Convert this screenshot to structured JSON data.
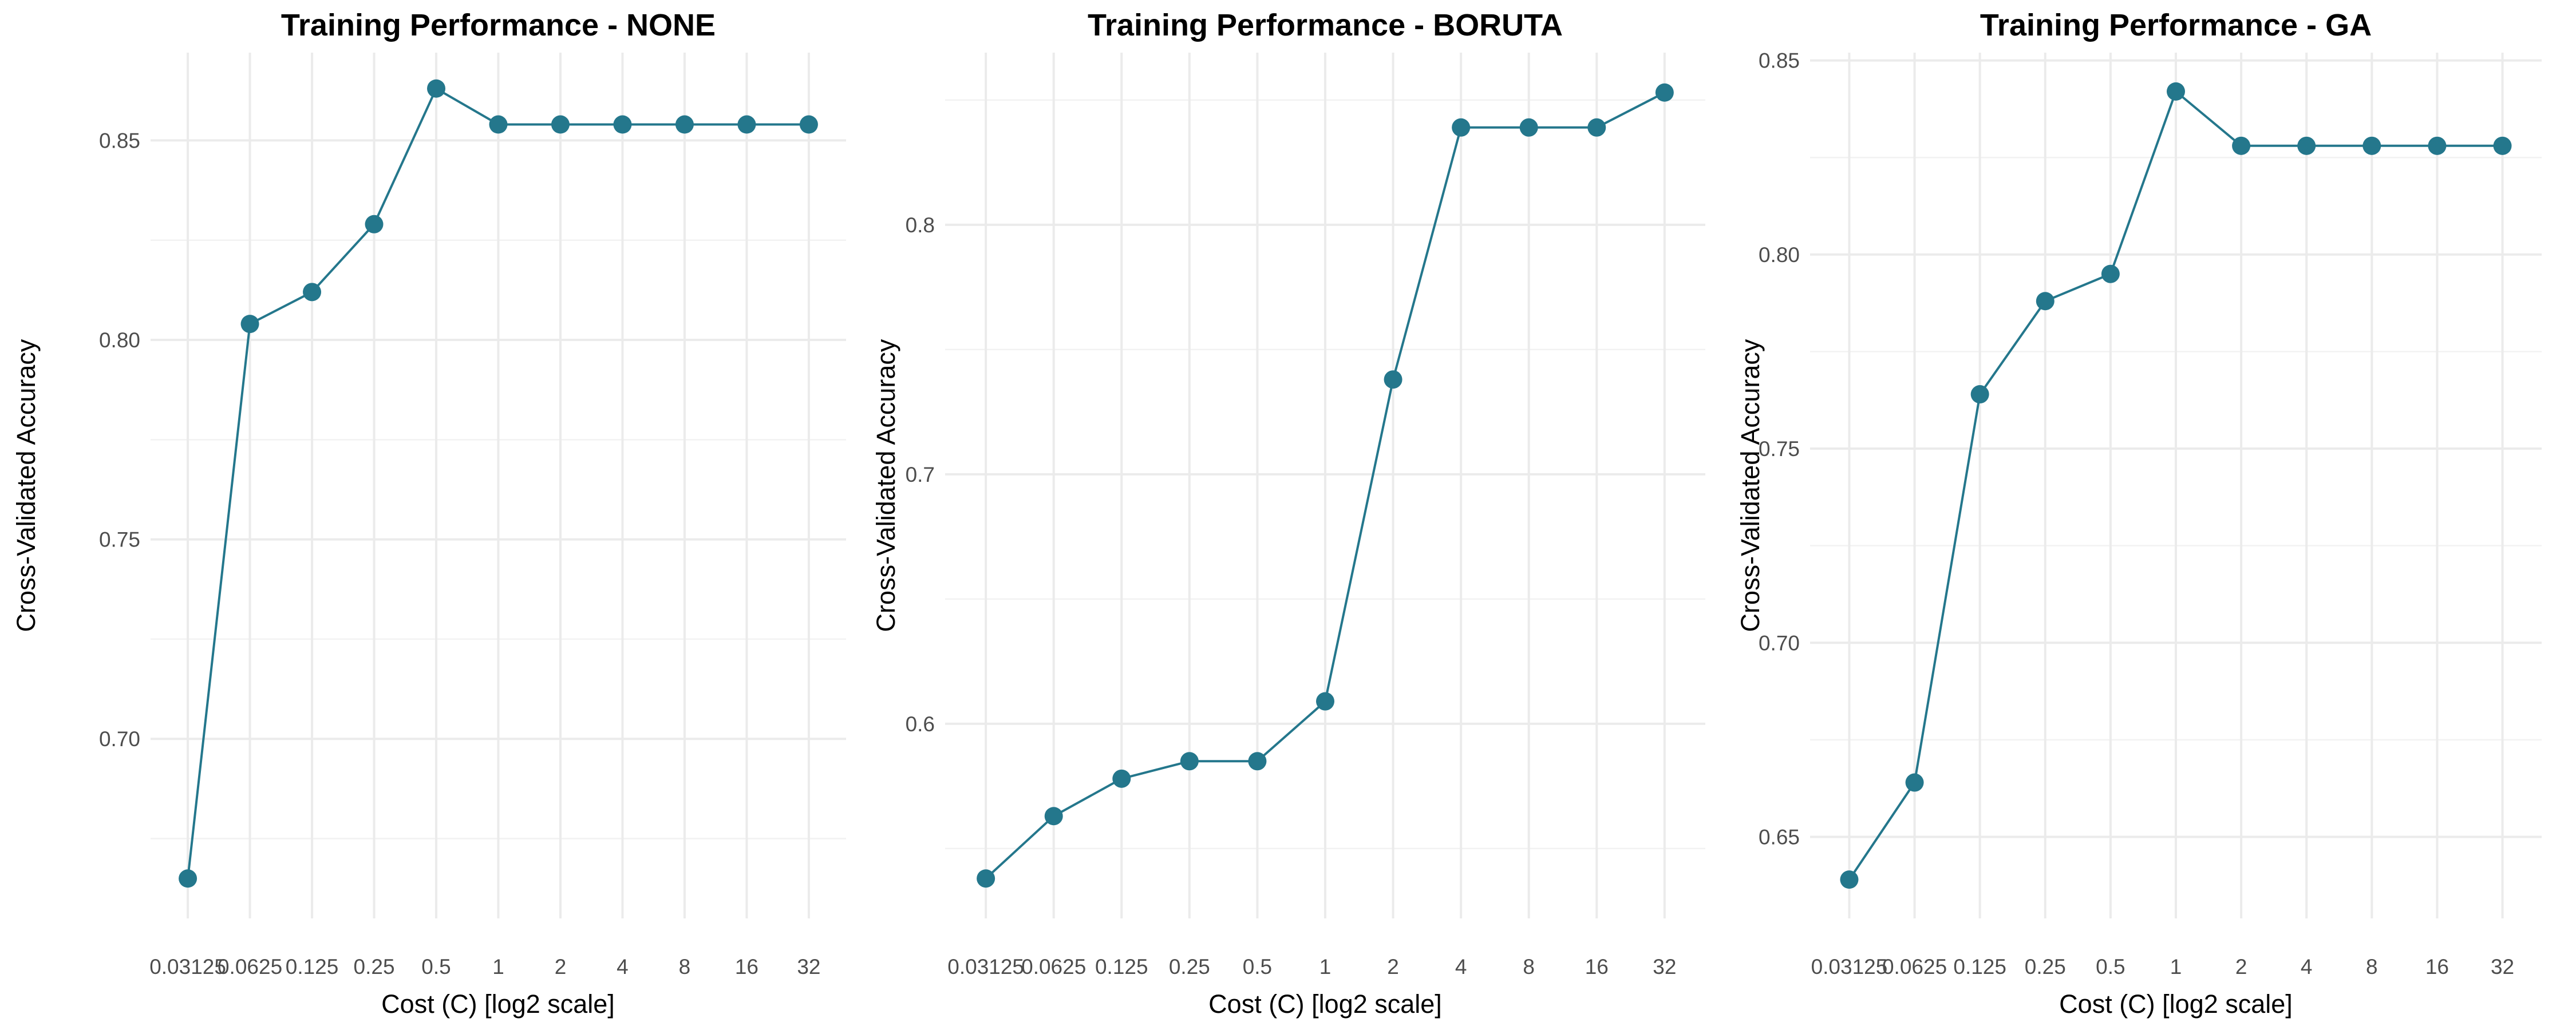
{
  "chart_data": [
    {
      "type": "line",
      "title": "Training Performance - NONE",
      "xlabel": "Cost (C) [log2 scale]",
      "ylabel": "Cross-Validated Accuracy",
      "x_scale": "log2",
      "x": [
        0.03125,
        0.0625,
        0.125,
        0.25,
        0.5,
        1,
        2,
        4,
        8,
        16,
        32
      ],
      "xticks": [
        "0.03125",
        "0.0625",
        "0.125",
        "0.25",
        "0.5",
        "1",
        "2",
        "4",
        "8",
        "16",
        "32"
      ],
      "values": [
        0.665,
        0.804,
        0.812,
        0.829,
        0.863,
        0.854,
        0.854,
        0.854,
        0.854,
        0.854,
        0.854
      ],
      "yticks": [
        0.7,
        0.75,
        0.8,
        0.85
      ],
      "ytick_labels": [
        "0.70",
        "0.75",
        "0.80",
        "0.85"
      ],
      "ylim": [
        0.655,
        0.872
      ],
      "grid": true,
      "legend": "none"
    },
    {
      "type": "line",
      "title": "Training Performance - BORUTA",
      "xlabel": "Cost (C) [log2 scale]",
      "ylabel": "Cross-Validated Accuracy",
      "x_scale": "log2",
      "x": [
        0.03125,
        0.0625,
        0.125,
        0.25,
        0.5,
        1,
        2,
        4,
        8,
        16,
        32
      ],
      "xticks": [
        "0.03125",
        "0.0625",
        "0.125",
        "0.25",
        "0.5",
        "1",
        "2",
        "4",
        "8",
        "16",
        "32"
      ],
      "values": [
        0.538,
        0.563,
        0.578,
        0.585,
        0.585,
        0.609,
        0.738,
        0.839,
        0.839,
        0.839,
        0.853
      ],
      "yticks": [
        0.6,
        0.7,
        0.8
      ],
      "ytick_labels": [
        "0.6",
        "0.7",
        "0.8"
      ],
      "ylim": [
        0.522,
        0.869
      ],
      "grid": true,
      "legend": "none"
    },
    {
      "type": "line",
      "title": "Training Performance - GA",
      "xlabel": "Cost (C) [log2 scale]",
      "ylabel": "Cross-Validated Accuracy",
      "x_scale": "log2",
      "x": [
        0.03125,
        0.0625,
        0.125,
        0.25,
        0.5,
        1,
        2,
        4,
        8,
        16,
        32
      ],
      "xticks": [
        "0.03125",
        "0.0625",
        "0.125",
        "0.25",
        "0.5",
        "1",
        "2",
        "4",
        "8",
        "16",
        "32"
      ],
      "values": [
        0.639,
        0.664,
        0.764,
        0.788,
        0.795,
        0.842,
        0.828,
        0.828,
        0.828,
        0.828,
        0.828
      ],
      "yticks": [
        0.65,
        0.7,
        0.75,
        0.8,
        0.85
      ],
      "ytick_labels": [
        "0.65",
        "0.70",
        "0.75",
        "0.80",
        "0.85"
      ],
      "ylim": [
        0.629,
        0.852
      ],
      "grid": true,
      "legend": "none"
    }
  ],
  "style": {
    "series_color": "#24778c",
    "grid_major_color": "#ebebeb",
    "grid_minor_color": "#f2f2f2",
    "tick_label_color": "#4d4d4d",
    "text_color": "#000000",
    "background": "#ffffff"
  }
}
